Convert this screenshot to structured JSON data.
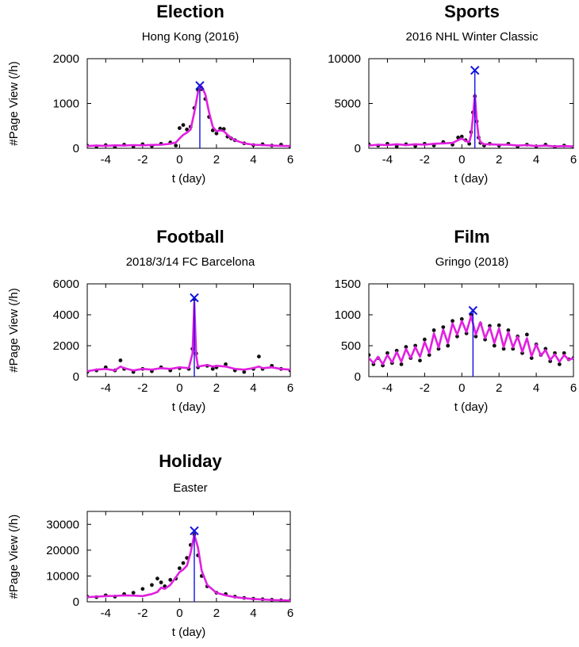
{
  "colors": {
    "data": "#111111",
    "fit": "#e020e0",
    "peak": "#1010e0"
  },
  "chart_data": [
    {
      "type": "scatter",
      "title": "Election",
      "subtitle": "Hong Kong (2016)",
      "xlabel": "t (day)",
      "ylabel": "#Page View (/h)",
      "xlim": [
        -5,
        6
      ],
      "ylim": [
        0,
        2000
      ],
      "xticks": [
        -4,
        -2,
        0,
        2,
        4,
        6
      ],
      "yticks": [
        0,
        1000,
        2000
      ],
      "peak": {
        "x": 1.1,
        "y": 1400
      },
      "series": [
        {
          "name": "",
          "role": "data",
          "x": [
            -5,
            -4.5,
            -4,
            -3.5,
            -3,
            -2.5,
            -2,
            -1.5,
            -1,
            -0.5,
            -0.2,
            0,
            0.2,
            0.4,
            0.6,
            0.8,
            1.0,
            1.2,
            1.4,
            1.6,
            1.8,
            2.0,
            2.2,
            2.4,
            2.6,
            2.8,
            3.0,
            3.5,
            4,
            4.5,
            5,
            5.5,
            6
          ],
          "y": [
            60,
            40,
            70,
            30,
            80,
            40,
            90,
            50,
            100,
            130,
            60,
            450,
            520,
            420,
            480,
            900,
            1300,
            1320,
            1100,
            700,
            400,
            330,
            440,
            430,
            260,
            220,
            180,
            110,
            70,
            90,
            60,
            80,
            40
          ]
        },
        {
          "name": "",
          "role": "fit",
          "x": [
            -5,
            -4.5,
            -4,
            -3.5,
            -3,
            -2.5,
            -2,
            -1.5,
            -1,
            -0.5,
            -0.2,
            0,
            0.2,
            0.4,
            0.6,
            0.8,
            1.0,
            1.2,
            1.4,
            1.6,
            1.8,
            2.0,
            2.2,
            2.4,
            2.6,
            2.8,
            3.0,
            3.5,
            4,
            4.5,
            5,
            5.5,
            6
          ],
          "y": [
            50,
            60,
            55,
            65,
            60,
            70,
            65,
            75,
            80,
            100,
            130,
            220,
            300,
            350,
            420,
            800,
            1250,
            1380,
            1200,
            800,
            480,
            380,
            400,
            380,
            300,
            230,
            180,
            110,
            80,
            70,
            60,
            55,
            50
          ]
        }
      ]
    },
    {
      "type": "scatter",
      "title": "Sports",
      "subtitle": "2016 NHL Winter Classic",
      "xlabel": "t (day)",
      "ylabel": "",
      "xlim": [
        -5,
        6
      ],
      "ylim": [
        0,
        10000
      ],
      "xticks": [
        -4,
        -2,
        0,
        2,
        4,
        6
      ],
      "yticks": [
        0,
        5000,
        10000
      ],
      "peak": {
        "x": 0.7,
        "y": 8700
      },
      "series": [
        {
          "name": "",
          "role": "data",
          "x": [
            -5,
            -4.5,
            -4,
            -3.5,
            -3,
            -2.5,
            -2,
            -1.5,
            -1,
            -0.5,
            -0.2,
            0,
            0.2,
            0.4,
            0.5,
            0.6,
            0.7,
            0.8,
            0.9,
            1.0,
            1.2,
            1.5,
            2,
            2.5,
            3,
            3.5,
            4,
            4.5,
            5,
            5.5,
            6
          ],
          "y": [
            450,
            300,
            500,
            200,
            450,
            250,
            500,
            300,
            700,
            400,
            1200,
            1300,
            900,
            500,
            1800,
            4000,
            5800,
            3000,
            1200,
            600,
            300,
            500,
            300,
            500,
            200,
            400,
            200,
            400,
            150,
            300,
            150
          ]
        },
        {
          "name": "",
          "role": "fit",
          "x": [
            -5,
            -4.5,
            -4,
            -3.5,
            -3,
            -2.5,
            -2,
            -1.5,
            -1,
            -0.5,
            -0.2,
            0,
            0.2,
            0.4,
            0.5,
            0.6,
            0.7,
            0.8,
            0.9,
            1.0,
            1.2,
            1.5,
            2,
            2.5,
            3,
            3.5,
            4,
            4.5,
            5,
            5.5,
            6
          ],
          "y": [
            300,
            400,
            350,
            450,
            350,
            450,
            400,
            500,
            550,
            600,
            900,
            1100,
            800,
            700,
            1500,
            3500,
            6000,
            3200,
            1300,
            700,
            450,
            450,
            400,
            400,
            300,
            350,
            250,
            300,
            200,
            250,
            200
          ]
        }
      ]
    },
    {
      "type": "scatter",
      "title": "Football",
      "subtitle": "2018/3/14 FC Barcelona",
      "xlabel": "t (day)",
      "ylabel": "#Page View (/h)",
      "xlim": [
        -5,
        6
      ],
      "ylim": [
        0,
        6000
      ],
      "xticks": [
        -4,
        -2,
        0,
        2,
        4,
        6
      ],
      "yticks": [
        0,
        2000,
        4000,
        6000
      ],
      "peak": {
        "x": 0.8,
        "y": 5100
      },
      "series": [
        {
          "name": "",
          "role": "data",
          "x": [
            -5,
            -4.5,
            -4,
            -3.5,
            -3.2,
            -3,
            -2.5,
            -2,
            -1.5,
            -1,
            -0.5,
            0,
            0.5,
            0.7,
            0.8,
            0.9,
            1.0,
            1.5,
            1.8,
            2,
            2.5,
            3,
            3.5,
            4,
            4.3,
            4.5,
            5,
            5.5,
            6
          ],
          "y": [
            300,
            400,
            600,
            400,
            1050,
            500,
            300,
            500,
            350,
            600,
            400,
            550,
            500,
            1800,
            5000,
            1500,
            600,
            700,
            500,
            600,
            800,
            400,
            300,
            500,
            1300,
            500,
            700,
            500,
            400
          ]
        },
        {
          "name": "",
          "role": "fit",
          "x": [
            -5,
            -4.5,
            -4,
            -3.5,
            -3.2,
            -3,
            -2.5,
            -2,
            -1.5,
            -1,
            -0.5,
            0,
            0.5,
            0.7,
            0.8,
            0.9,
            1.0,
            1.5,
            1.8,
            2,
            2.5,
            3,
            3.5,
            4,
            4.3,
            4.5,
            5,
            5.5,
            6
          ],
          "y": [
            350,
            450,
            500,
            400,
            650,
            550,
            400,
            500,
            450,
            550,
            500,
            600,
            550,
            1500,
            4800,
            1400,
            650,
            750,
            650,
            700,
            650,
            500,
            450,
            550,
            650,
            550,
            600,
            500,
            450
          ]
        }
      ]
    },
    {
      "type": "scatter",
      "title": "Film",
      "subtitle": "Gringo (2018)",
      "xlabel": "t (day)",
      "ylabel": "",
      "xlim": [
        -5,
        6
      ],
      "ylim": [
        0,
        1500
      ],
      "xticks": [
        -4,
        -2,
        0,
        2,
        4,
        6
      ],
      "yticks": [
        0,
        500,
        1000,
        1500
      ],
      "peak": {
        "x": 0.6,
        "y": 1070
      },
      "series": [
        {
          "name": "",
          "role": "data",
          "x": [
            -5,
            -4.75,
            -4.5,
            -4.25,
            -4,
            -3.75,
            -3.5,
            -3.25,
            -3,
            -2.75,
            -2.5,
            -2.25,
            -2,
            -1.75,
            -1.5,
            -1.25,
            -1,
            -0.75,
            -0.5,
            -0.25,
            0,
            0.25,
            0.5,
            0.75,
            1,
            1.25,
            1.5,
            1.75,
            2,
            2.25,
            2.5,
            2.75,
            3,
            3.25,
            3.5,
            3.75,
            4,
            4.25,
            4.5,
            4.75,
            5,
            5.25,
            5.5,
            5.75,
            6
          ],
          "y": [
            350,
            200,
            300,
            180,
            380,
            220,
            420,
            200,
            480,
            300,
            500,
            260,
            600,
            350,
            750,
            450,
            800,
            500,
            900,
            650,
            930,
            700,
            1000,
            650,
            850,
            600,
            820,
            500,
            830,
            450,
            750,
            450,
            650,
            380,
            680,
            300,
            520,
            350,
            450,
            250,
            380,
            200,
            380,
            280,
            300
          ]
        },
        {
          "name": "",
          "role": "fit",
          "x": [
            -5,
            -4.75,
            -4.5,
            -4.25,
            -4,
            -3.75,
            -3.5,
            -3.25,
            -3,
            -2.75,
            -2.5,
            -2.25,
            -2,
            -1.75,
            -1.5,
            -1.25,
            -1,
            -0.75,
            -0.5,
            -0.25,
            0,
            0.25,
            0.5,
            0.75,
            1,
            1.25,
            1.5,
            1.75,
            2,
            2.25,
            2.5,
            2.75,
            3,
            3.25,
            3.5,
            3.75,
            4,
            4.25,
            4.5,
            4.75,
            5,
            5.25,
            5.5,
            5.75,
            6
          ],
          "y": [
            300,
            220,
            320,
            200,
            350,
            230,
            400,
            240,
            450,
            300,
            480,
            320,
            560,
            380,
            700,
            470,
            760,
            540,
            860,
            680,
            900,
            720,
            980,
            680,
            880,
            620,
            800,
            540,
            780,
            480,
            720,
            470,
            650,
            400,
            620,
            330,
            520,
            340,
            430,
            270,
            360,
            240,
            350,
            270,
            300
          ]
        }
      ]
    },
    {
      "type": "scatter",
      "title": "Holiday",
      "subtitle": "Easter",
      "xlabel": "t (day)",
      "ylabel": "#Page View (/h)",
      "xlim": [
        -5,
        6
      ],
      "ylim": [
        0,
        35000
      ],
      "xticks": [
        -4,
        -2,
        0,
        2,
        4,
        6
      ],
      "yticks": [
        0,
        10000,
        20000,
        30000
      ],
      "peak": {
        "x": 0.8,
        "y": 27500
      },
      "series": [
        {
          "name": "",
          "role": "data",
          "x": [
            -5,
            -4.5,
            -4,
            -3.5,
            -3,
            -2.5,
            -2,
            -1.5,
            -1.2,
            -1,
            -0.8,
            -0.5,
            -0.2,
            0,
            0.2,
            0.4,
            0.6,
            0.8,
            1.0,
            1.2,
            1.5,
            2,
            2.5,
            3,
            3.5,
            4,
            4.5,
            5,
            5.5,
            6
          ],
          "y": [
            2000,
            1800,
            2500,
            2000,
            3000,
            3500,
            5000,
            6500,
            9000,
            7500,
            6000,
            8500,
            9000,
            13000,
            15000,
            17000,
            22000,
            26000,
            18000,
            10000,
            6000,
            3500,
            3000,
            2000,
            1500,
            1200,
            1000,
            800,
            600,
            500
          ]
        },
        {
          "name": "",
          "role": "fit",
          "x": [
            -5,
            -4.5,
            -4,
            -3.5,
            -3,
            -2.5,
            -2,
            -1.5,
            -1.2,
            -1,
            -0.8,
            -0.5,
            -0.2,
            0,
            0.2,
            0.4,
            0.6,
            0.8,
            1.0,
            1.2,
            1.5,
            2,
            2.5,
            3,
            3.5,
            4,
            4.5,
            5,
            5.5,
            6
          ],
          "y": [
            1800,
            2000,
            2200,
            2300,
            2500,
            2400,
            2200,
            3000,
            3800,
            5500,
            5000,
            6500,
            9500,
            11500,
            12500,
            14000,
            19000,
            26000,
            21000,
            12000,
            6500,
            3500,
            2500,
            1800,
            1400,
            1100,
            900,
            700,
            600,
            500
          ]
        }
      ]
    }
  ]
}
